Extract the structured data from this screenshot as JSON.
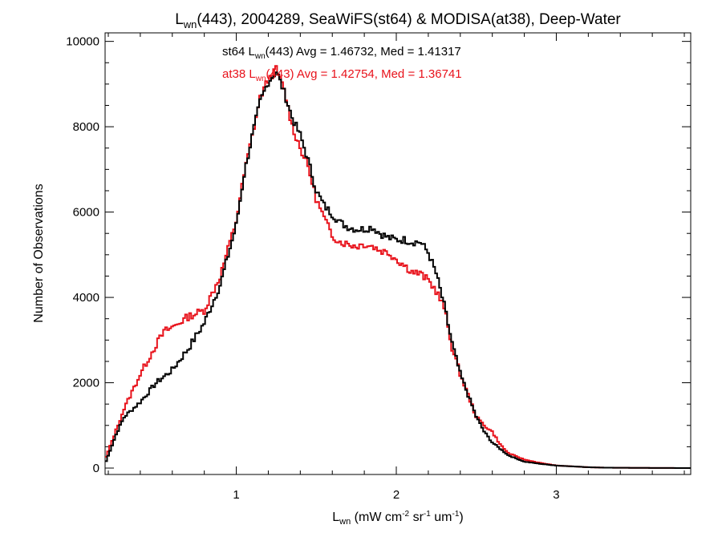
{
  "chart_data": {
    "type": "line",
    "title_parts": [
      "L",
      "wn",
      "(443), 2004289, SeaWiFS(st64) & MODISA(at38), Deep-Water"
    ],
    "xlabel_parts": [
      "L",
      "wn",
      " (mW cm",
      "-2",
      " sr",
      "-1",
      " um",
      "-1",
      ")"
    ],
    "ylabel": "Number of Observations",
    "xlim": [
      0.18,
      3.84
    ],
    "ylim": [
      -150,
      10200
    ],
    "x_ticks": [
      1,
      2,
      3
    ],
    "x_tick_labels": [
      "1",
      "2",
      "3"
    ],
    "y_ticks": [
      0,
      2000,
      4000,
      6000,
      8000,
      10000
    ],
    "y_tick_labels": [
      "0",
      "2000",
      "4000",
      "6000",
      "8000",
      "10000"
    ],
    "grid": false,
    "legend": "top-center",
    "series": [
      {
        "id": "st64",
        "color": "#000000",
        "label_parts": [
          "st64 L",
          "wn",
          "(443) Avg = 1.46732, Med = 1.41317"
        ],
        "x": [
          0.18,
          0.25,
          0.3,
          0.4,
          0.5,
          0.6,
          0.7,
          0.8,
          0.9,
          1.0,
          1.05,
          1.1,
          1.15,
          1.2,
          1.25,
          1.3,
          1.35,
          1.4,
          1.45,
          1.5,
          1.55,
          1.6,
          1.65,
          1.7,
          1.75,
          1.8,
          1.85,
          1.9,
          1.95,
          2.0,
          2.05,
          2.1,
          2.15,
          2.2,
          2.25,
          2.3,
          2.35,
          2.4,
          2.45,
          2.5,
          2.55,
          2.6,
          2.65,
          2.7,
          2.8,
          2.9,
          3.0,
          3.1,
          3.2,
          3.3,
          3.5,
          3.84
        ],
        "y": [
          100,
          800,
          1200,
          1550,
          2000,
          2300,
          2800,
          3400,
          4300,
          5700,
          6900,
          7800,
          8600,
          9050,
          9300,
          8800,
          8200,
          7800,
          7200,
          6500,
          6150,
          5950,
          5750,
          5650,
          5600,
          5600,
          5650,
          5500,
          5400,
          5350,
          5350,
          5300,
          5300,
          5050,
          4550,
          3800,
          2900,
          2200,
          1700,
          1200,
          850,
          600,
          450,
          300,
          150,
          100,
          60,
          40,
          20,
          10,
          5,
          0
        ]
      },
      {
        "id": "at38",
        "color": "#e8121b",
        "label_parts": [
          "at38 L",
          "wn",
          "(443) Avg = 1.42754, Med = 1.36741"
        ],
        "x": [
          0.18,
          0.25,
          0.3,
          0.4,
          0.5,
          0.55,
          0.6,
          0.7,
          0.8,
          0.9,
          1.0,
          1.05,
          1.1,
          1.15,
          1.2,
          1.25,
          1.3,
          1.35,
          1.4,
          1.45,
          1.5,
          1.55,
          1.6,
          1.65,
          1.7,
          1.75,
          1.8,
          1.85,
          1.9,
          1.95,
          2.0,
          2.05,
          2.1,
          2.15,
          2.2,
          2.25,
          2.3,
          2.35,
          2.4,
          2.45,
          2.5,
          2.55,
          2.6,
          2.65,
          2.7,
          2.8,
          2.9,
          3.0,
          3.1,
          3.2,
          3.3,
          3.5,
          3.84
        ],
        "y": [
          200,
          900,
          1400,
          2200,
          2900,
          3200,
          3300,
          3550,
          3700,
          4500,
          5800,
          6900,
          7800,
          8700,
          9100,
          9350,
          8850,
          8000,
          7500,
          7050,
          6300,
          5850,
          5450,
          5300,
          5250,
          5200,
          5250,
          5200,
          5100,
          5050,
          4900,
          4750,
          4600,
          4550,
          4400,
          4150,
          3750,
          2800,
          2200,
          1700,
          1200,
          1000,
          850,
          550,
          350,
          200,
          120,
          60,
          40,
          20,
          10,
          5,
          0
        ]
      }
    ]
  }
}
